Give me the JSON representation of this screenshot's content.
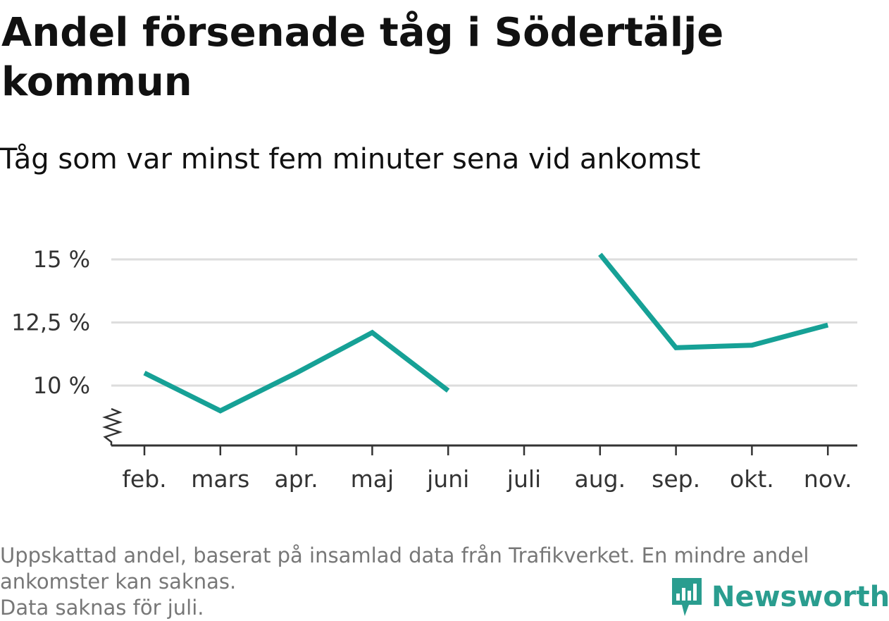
{
  "title": "Andel försenade tåg i Södertälje kommun",
  "subtitle": "Tåg som var minst fem minuter sena vid ankomst",
  "footnote": {
    "line1": "Uppskattad andel, baserat på insamlad data från Trafikverket. En mindre andel",
    "line2": "ankomster kan saknas.",
    "line3": "Data saknas för juli."
  },
  "logo": {
    "text": "Newsworthy",
    "icon": "newsworthy-bar-chart-icon"
  },
  "colors": {
    "line": "#16a196",
    "grid": "#dddddd",
    "axis": "#333333"
  },
  "chart_data": {
    "type": "line",
    "title": "Andel försenade tåg i Södertälje kommun",
    "subtitle": "Tåg som var minst fem minuter sena vid ankomst",
    "xlabel": "",
    "ylabel": "",
    "categories": [
      "feb.",
      "mars",
      "apr.",
      "maj",
      "juni",
      "juli",
      "aug.",
      "sep.",
      "okt.",
      "nov."
    ],
    "series": [
      {
        "values": [
          10.5,
          9.0,
          10.5,
          12.1,
          9.8,
          null,
          15.2,
          11.5,
          11.6,
          12.4
        ]
      }
    ],
    "y_ticks": [
      {
        "value": 10,
        "label": "10 %"
      },
      {
        "value": 12.5,
        "label": "12,5 %"
      },
      {
        "value": 15,
        "label": "15 %"
      }
    ],
    "ylim": [
      7.5,
      15.5
    ],
    "axis_break": true,
    "grid": true,
    "legend": "none"
  }
}
